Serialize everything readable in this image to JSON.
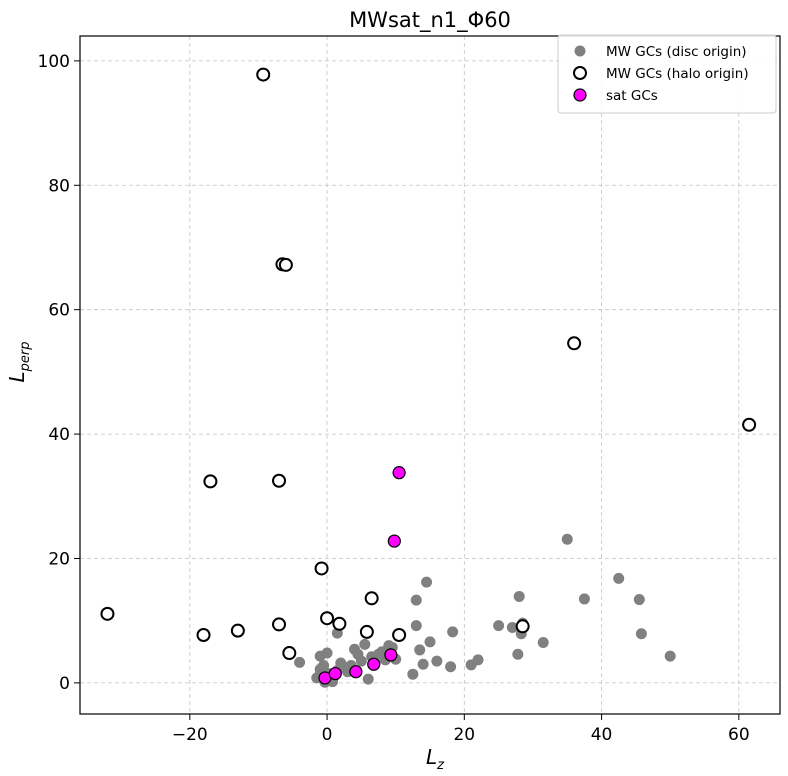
{
  "chart_data": {
    "type": "scatter",
    "title": "MWsat_n1_Φ60",
    "xlabel": {
      "main": "L",
      "sub": "z"
    },
    "ylabel": {
      "main": "L",
      "sub": "perp"
    },
    "xlim": [
      -36,
      66
    ],
    "ylim": [
      -5,
      104
    ],
    "xticks": [
      -20,
      0,
      20,
      40,
      60
    ],
    "xtick_labels": [
      "−20",
      "0",
      "20",
      "40",
      "60"
    ],
    "yticks": [
      0,
      20,
      40,
      60,
      80,
      100
    ],
    "ytick_labels": [
      "0",
      "20",
      "40",
      "60",
      "80",
      "100"
    ],
    "grid": true,
    "legend_position": "top-right",
    "colors": {
      "disc": "#808080",
      "halo_edge": "#000000",
      "halo_fill": "#ffffff",
      "sat": "#ff00ff",
      "sat_edge": "#000000"
    },
    "series": [
      {
        "name": "MW GCs (disc origin)",
        "style": "disc",
        "points": [
          [
            -1,
            4.3
          ],
          [
            -0.5,
            2.8
          ],
          [
            0,
            4.8
          ],
          [
            0.2,
            1.5
          ],
          [
            0.5,
            0.5
          ],
          [
            0.8,
            0.2
          ],
          [
            -1.5,
            0.8
          ],
          [
            -1,
            1.4
          ],
          [
            -0.3,
            0.1
          ],
          [
            1,
            1
          ],
          [
            1.5,
            2
          ],
          [
            2,
            3.2
          ],
          [
            2.5,
            2.5
          ],
          [
            3,
            1.8
          ],
          [
            3.5,
            2.8
          ],
          [
            4,
            5.4
          ],
          [
            4.5,
            4.6
          ],
          [
            5,
            3.5
          ],
          [
            5.5,
            6.2
          ],
          [
            5.8,
            8.4
          ],
          [
            6,
            0.6
          ],
          [
            6.5,
            4.2
          ],
          [
            7,
            3.2
          ],
          [
            7.5,
            4.6
          ],
          [
            8,
            5
          ],
          [
            8.5,
            3.7
          ],
          [
            9,
            6
          ],
          [
            9.5,
            5.7
          ],
          [
            10,
            3.8
          ],
          [
            -4,
            3.3
          ],
          [
            1.5,
            8
          ],
          [
            10.5,
            7.8
          ],
          [
            12.5,
            1.4
          ],
          [
            13,
            9.2
          ],
          [
            13.5,
            5.3
          ],
          [
            14,
            3
          ],
          [
            14.5,
            16.2
          ],
          [
            15,
            6.6
          ],
          [
            16,
            3.5
          ],
          [
            18,
            2.6
          ],
          [
            18.3,
            8.2
          ],
          [
            21,
            2.9
          ],
          [
            22,
            3.7
          ],
          [
            25,
            9.2
          ],
          [
            27,
            8.9
          ],
          [
            27.8,
            4.6
          ],
          [
            28,
            13.9
          ],
          [
            28.3,
            7.9
          ],
          [
            28.5,
            9.6
          ],
          [
            31.5,
            6.5
          ],
          [
            35,
            23.1
          ],
          [
            37.5,
            13.5
          ],
          [
            42.5,
            16.8
          ],
          [
            45.5,
            13.4
          ],
          [
            45.8,
            7.9
          ],
          [
            50,
            4.3
          ],
          [
            13,
            13.3
          ],
          [
            -1,
            2.2
          ]
        ]
      },
      {
        "name": "MW GCs (halo origin)",
        "style": "halo",
        "points": [
          [
            -9.3,
            97.8
          ],
          [
            -6.5,
            67.3
          ],
          [
            -6,
            67.2
          ],
          [
            36,
            54.6
          ],
          [
            61.5,
            41.5
          ],
          [
            -17,
            32.4
          ],
          [
            -7,
            32.5
          ],
          [
            -0.8,
            18.4
          ],
          [
            -32,
            11.1
          ],
          [
            -18,
            7.7
          ],
          [
            -13,
            8.4
          ],
          [
            -7,
            9.4
          ],
          [
            -5.5,
            4.8
          ],
          [
            0,
            10.4
          ],
          [
            1.8,
            9.5
          ],
          [
            5.8,
            8.2
          ],
          [
            6.5,
            13.6
          ],
          [
            10.5,
            7.7
          ],
          [
            28.5,
            9.1
          ]
        ]
      },
      {
        "name": "sat GCs",
        "style": "sat",
        "points": [
          [
            10.5,
            33.8
          ],
          [
            9.8,
            22.8
          ],
          [
            -0.3,
            0.8
          ],
          [
            1.2,
            1.5
          ],
          [
            4.2,
            1.8
          ],
          [
            6.8,
            3
          ],
          [
            9.3,
            4.5
          ]
        ]
      }
    ]
  }
}
